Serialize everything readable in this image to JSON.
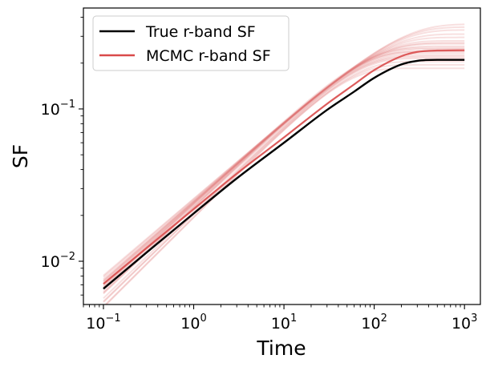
{
  "chart_data": {
    "type": "line",
    "xlabel": "Time",
    "ylabel": "SF",
    "xscale": "log",
    "yscale": "log",
    "xlim": [
      0.06,
      1500
    ],
    "ylim": [
      0.0052,
      0.46
    ],
    "grid": false,
    "legend_position": "top-left",
    "x_ticks": [
      {
        "base": "10",
        "exp": "−1",
        "value": 0.1
      },
      {
        "base": "10",
        "exp": "0",
        "value": 1
      },
      {
        "base": "10",
        "exp": "1",
        "value": 10
      },
      {
        "base": "10",
        "exp": "2",
        "value": 100
      },
      {
        "base": "10",
        "exp": "3",
        "value": 1000
      }
    ],
    "y_ticks": [
      {
        "base": "10",
        "exp": "−2",
        "value": 0.01
      },
      {
        "base": "10",
        "exp": "−1",
        "value": 0.1
      }
    ],
    "x": [
      0.1,
      0.3,
      1,
      3,
      10,
      30,
      60,
      100,
      200,
      300,
      500,
      1000
    ],
    "series": [
      {
        "name": "True r-band SF",
        "color": "#000000",
        "values": [
          0.0066,
          0.0114,
          0.0206,
          0.035,
          0.06,
          0.0985,
          0.13,
          0.16,
          0.196,
          0.207,
          0.21,
          0.21
        ]
      },
      {
        "name": "MCMC r-band SF",
        "color": "#d94a4a",
        "values": [
          0.0071,
          0.0122,
          0.022,
          0.0376,
          0.065,
          0.108,
          0.145,
          0.18,
          0.222,
          0.237,
          0.242,
          0.243
        ]
      }
    ],
    "mcmc_samples": {
      "color": "#e07070",
      "samples": [
        {
          "amplitude": 0.185,
          "tau": 45,
          "beta": 1.18
        },
        {
          "amplitude": 0.195,
          "tau": 50,
          "beta": 1.18
        },
        {
          "amplitude": 0.205,
          "tau": 55,
          "beta": 1.15
        },
        {
          "amplitude": 0.215,
          "tau": 58,
          "beta": 1.14
        },
        {
          "amplitude": 0.225,
          "tau": 62,
          "beta": 1.12
        },
        {
          "amplitude": 0.232,
          "tau": 66,
          "beta": 1.11
        },
        {
          "amplitude": 0.24,
          "tau": 70,
          "beta": 1.1
        },
        {
          "amplitude": 0.248,
          "tau": 75,
          "beta": 1.09
        },
        {
          "amplitude": 0.258,
          "tau": 82,
          "beta": 1.08
        },
        {
          "amplitude": 0.268,
          "tau": 90,
          "beta": 1.07
        },
        {
          "amplitude": 0.28,
          "tau": 100,
          "beta": 1.06
        },
        {
          "amplitude": 0.295,
          "tau": 115,
          "beta": 1.05
        },
        {
          "amplitude": 0.31,
          "tau": 130,
          "beta": 1.04
        },
        {
          "amplitude": 0.33,
          "tau": 150,
          "beta": 1.03
        },
        {
          "amplitude": 0.345,
          "tau": 165,
          "beta": 1.02
        },
        {
          "amplitude": 0.36,
          "tau": 185,
          "beta": 1.01
        },
        {
          "amplitude": 0.252,
          "tau": 72,
          "beta": 1.1
        },
        {
          "amplitude": 0.238,
          "tau": 64,
          "beta": 1.13
        },
        {
          "amplitude": 0.22,
          "tau": 60,
          "beta": 1.16
        },
        {
          "amplitude": 0.272,
          "tau": 95,
          "beta": 1.05
        }
      ]
    }
  }
}
